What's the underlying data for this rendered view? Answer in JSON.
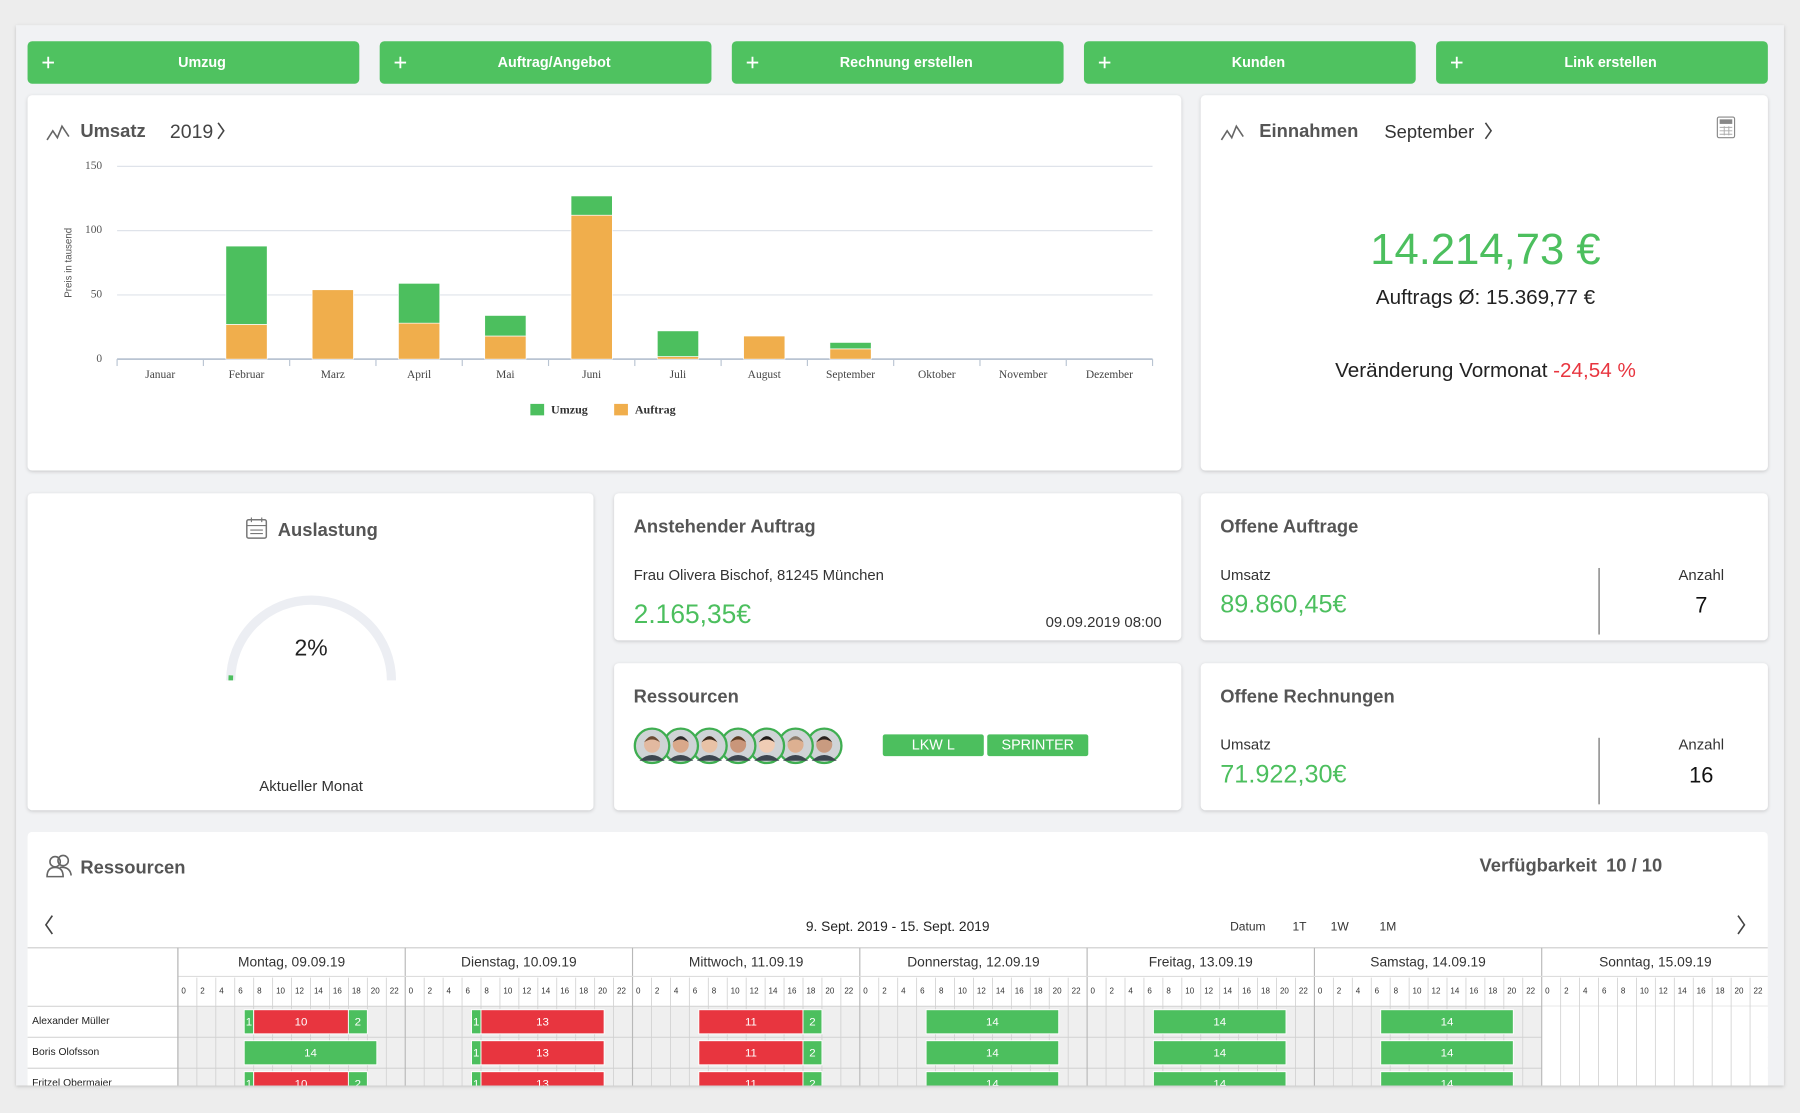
{
  "actions": [
    "Umzug",
    "Auftrag/Angebot",
    "Rechnung erstellen",
    "Kunden",
    "Link erstellen"
  ],
  "chart_data": {
    "type": "bar",
    "stacked": true,
    "title": "Umsatz",
    "period": "2019",
    "y_label": "Preis in tausend",
    "categories": [
      "Januar",
      "Februar",
      "Marz",
      "April",
      "Mai",
      "Juni",
      "Juli",
      "August",
      "September",
      "Oktober",
      "November",
      "Dezember"
    ],
    "series": [
      {
        "name": "Umzug",
        "color": "#4cbf5e",
        "values": [
          0,
          61,
          0,
          31,
          16,
          15,
          20,
          0,
          5,
          0,
          0,
          0
        ]
      },
      {
        "name": "Auftrag",
        "color": "#f0ae4c",
        "values": [
          0,
          27,
          54,
          28,
          18,
          112,
          2,
          18,
          8,
          0,
          0,
          0
        ]
      }
    ],
    "ylim": [
      0,
      150
    ],
    "yticks": [
      0,
      50,
      100,
      150
    ],
    "grid": true,
    "legend": "bottom"
  },
  "einnahmen": {
    "title": "Einnahmen",
    "period": "September",
    "total": "14.214,73 €",
    "average": "Auftrags Ø: 15.369,77 €",
    "change_label": "Veränderung Vormonat",
    "change": "-24,54 %"
  },
  "auslastung": {
    "title": "Auslastung",
    "value": 2,
    "value_label": "2%",
    "caption": "Aktueller Monat"
  },
  "anstehender_auftrag": {
    "title": "Anstehender Auftrag",
    "customer": "Frau Olivera Bischof, 81245 München",
    "amount": "2.165,35€",
    "date": "09.09.2019 08:00"
  },
  "ressourcen_card": {
    "title": "Ressourcen",
    "vehicles": [
      "LKW L",
      "SPRINTER"
    ]
  },
  "offene_auftraege": {
    "title": "Offene Auftrage",
    "umsatz_label": "Umsatz",
    "umsatz": "89.860,45€",
    "anzahl_label": "Anzahl",
    "anzahl": 7
  },
  "offene_rechnungen": {
    "title": "Offene Rechnungen",
    "umsatz_label": "Umsatz",
    "umsatz": "71.922,30€",
    "anzahl_label": "Anzahl",
    "anzahl": 16
  },
  "planner": {
    "title": "Ressourcen",
    "availability_label": "Verfügbarkeit",
    "availability": "10 / 10",
    "range": "9. Sept. 2019 - 15. Sept. 2019",
    "views": [
      "Datum",
      "1T",
      "1W",
      "1M"
    ],
    "days": [
      "Montag, 09.09.19",
      "Dienstag, 10.09.19",
      "Mittwoch, 11.09.19",
      "Donnerstag, 12.09.19",
      "Freitag, 13.09.19",
      "Samstag, 14.09.19",
      "Sonntag, 15.09.19"
    ],
    "hours": [
      0,
      2,
      4,
      6,
      8,
      10,
      12,
      14,
      16,
      18,
      20,
      22
    ],
    "rows": [
      {
        "name": "Alexander Müller",
        "days": [
          [
            {
              "hours": 1,
              "color": "#4cbf5e"
            },
            {
              "hours": 10,
              "color": "#e8353f"
            },
            {
              "hours": 2,
              "color": "#4cbf5e"
            }
          ],
          [
            {
              "hours": 1,
              "color": "#4cbf5e"
            },
            {
              "hours": 13,
              "color": "#e8353f"
            }
          ],
          [
            {
              "hours": 11,
              "color": "#e8353f"
            },
            {
              "hours": 2,
              "color": "#4cbf5e"
            }
          ],
          [
            {
              "hours": 14,
              "color": "#4cbf5e"
            }
          ],
          [
            {
              "hours": 14,
              "color": "#4cbf5e"
            }
          ],
          [
            {
              "hours": 14,
              "color": "#4cbf5e"
            }
          ],
          []
        ]
      },
      {
        "name": "Boris Olofsson",
        "days": [
          [
            {
              "hours": 14,
              "color": "#4cbf5e"
            }
          ],
          [
            {
              "hours": 1,
              "color": "#4cbf5e"
            },
            {
              "hours": 13,
              "color": "#e8353f"
            }
          ],
          [
            {
              "hours": 11,
              "color": "#e8353f"
            },
            {
              "hours": 2,
              "color": "#4cbf5e"
            }
          ],
          [
            {
              "hours": 14,
              "color": "#4cbf5e"
            }
          ],
          [
            {
              "hours": 14,
              "color": "#4cbf5e"
            }
          ],
          [
            {
              "hours": 14,
              "color": "#4cbf5e"
            }
          ],
          []
        ]
      },
      {
        "name": "Fritzel Obermaier",
        "days": [
          [
            {
              "hours": 1,
              "color": "#4cbf5e"
            },
            {
              "hours": 10,
              "color": "#e8353f"
            },
            {
              "hours": 2,
              "color": "#4cbf5e"
            }
          ],
          [
            {
              "hours": 1,
              "color": "#4cbf5e"
            },
            {
              "hours": 13,
              "color": "#e8353f"
            }
          ],
          [
            {
              "hours": 11,
              "color": "#e8353f"
            },
            {
              "hours": 2,
              "color": "#4cbf5e"
            }
          ],
          [
            {
              "hours": 14,
              "color": "#4cbf5e"
            }
          ],
          [
            {
              "hours": 14,
              "color": "#4cbf5e"
            }
          ],
          [
            {
              "hours": 14,
              "color": "#4cbf5e"
            }
          ],
          []
        ]
      }
    ]
  }
}
